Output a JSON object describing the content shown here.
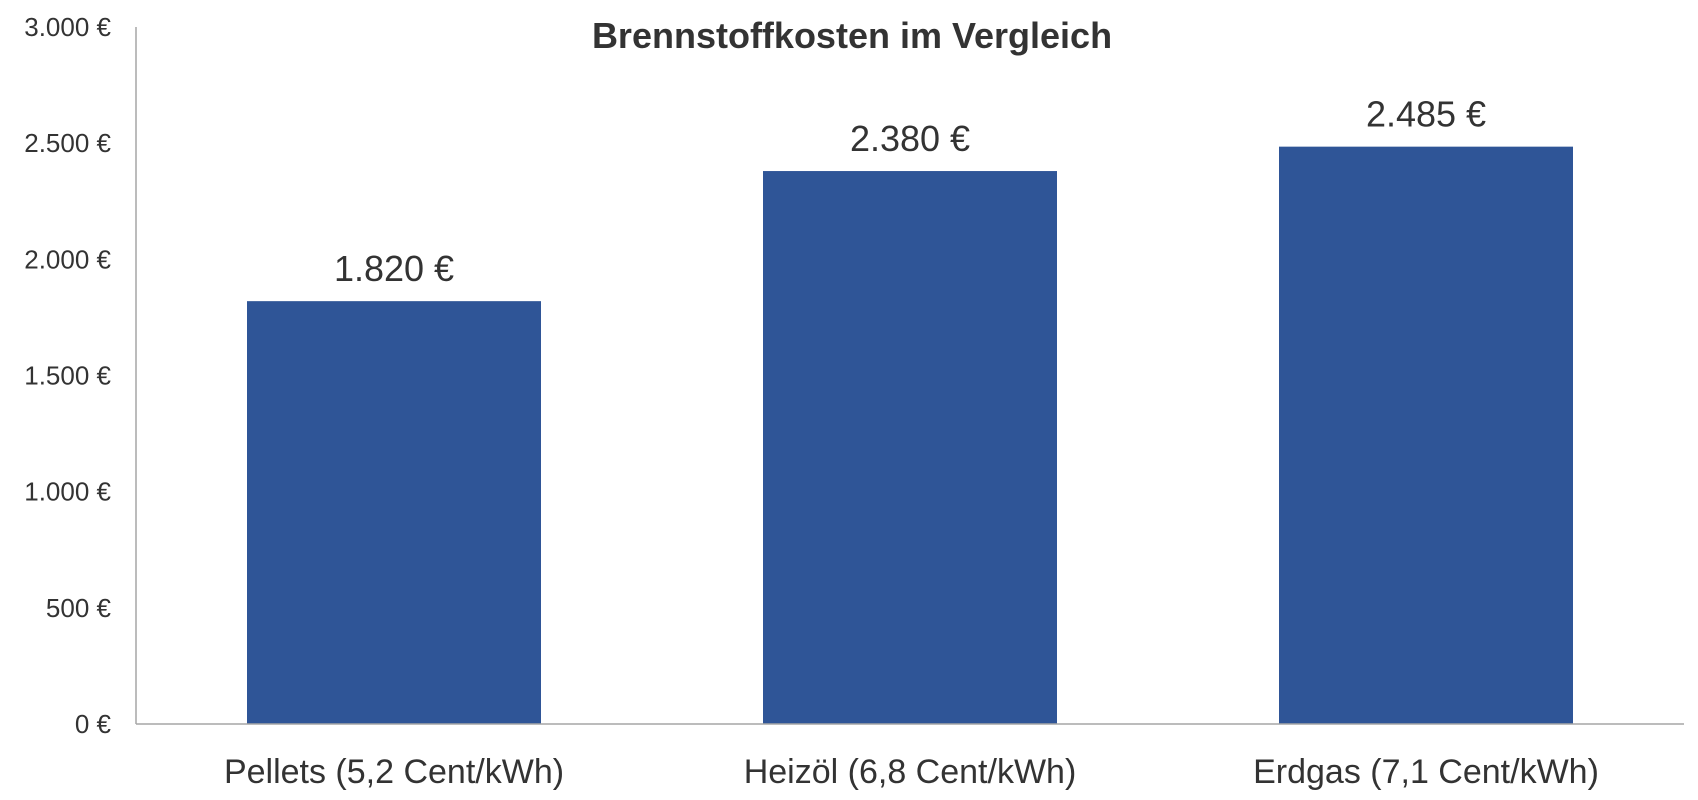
{
  "chart_data": {
    "type": "bar",
    "title": "Brennstoffkosten im Vergleich",
    "categories": [
      "Pellets (5,2 Cent/kWh)",
      "Heizöl (6,8 Cent/kWh)",
      "Erdgas (7,1 Cent/kWh)"
    ],
    "values": [
      1820,
      2380,
      2485
    ],
    "data_labels": [
      "1.820 €",
      "2.380 €",
      "2.485 €"
    ],
    "ylim": [
      0,
      3000
    ],
    "yticks": [
      0,
      500,
      1000,
      1500,
      2000,
      2500,
      3000
    ],
    "ytick_labels": [
      "0 €",
      "500 €",
      "1.000 €",
      "1.500 €",
      "2.000 €",
      "2.500 €",
      "3.000 €"
    ],
    "xlabel": "",
    "ylabel": "",
    "grid": false,
    "legend": "none",
    "bar_color": "#2f5597"
  }
}
